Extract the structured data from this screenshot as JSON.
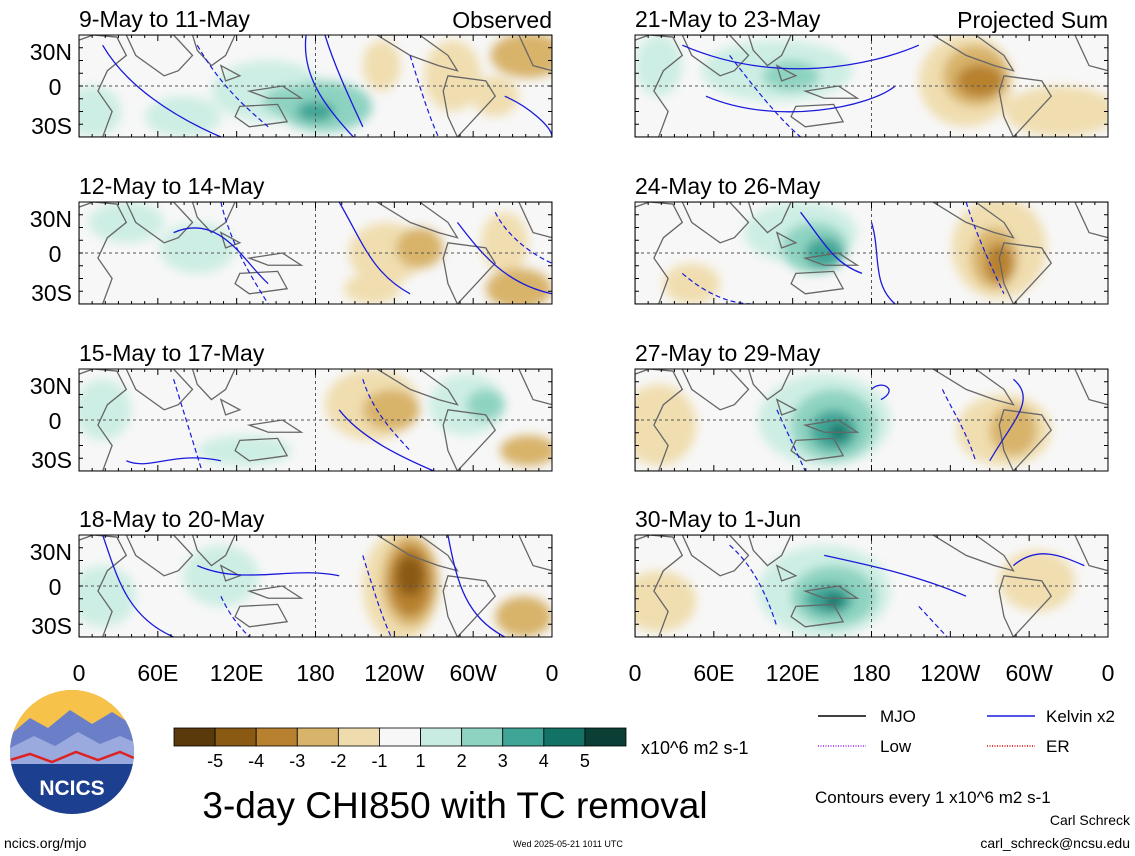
{
  "panels": [
    {
      "title": "9-May to 11-May",
      "label": "Observed"
    },
    {
      "title": "21-May to 23-May",
      "label": "Projected Sum"
    },
    {
      "title": "12-May to 14-May",
      "label": ""
    },
    {
      "title": "24-May to 26-May",
      "label": ""
    },
    {
      "title": "15-May to 17-May",
      "label": ""
    },
    {
      "title": "27-May to 29-May",
      "label": ""
    },
    {
      "title": "18-May to 20-May",
      "label": ""
    },
    {
      "title": "30-May to 1-Jun",
      "label": ""
    }
  ],
  "lat_labels": [
    "30N",
    "0",
    "30S"
  ],
  "lon_labels": [
    "0",
    "60E",
    "120E",
    "180",
    "120W",
    "60W",
    "0"
  ],
  "colorbar": {
    "ticks": [
      "-5",
      "-4",
      "-3",
      "-2",
      "-1",
      "1",
      "2",
      "3",
      "4",
      "5"
    ],
    "units": "x10^6 m2 s-1",
    "colors": [
      "#5a3a0a",
      "#8a5a12",
      "#b7812f",
      "#d8b36b",
      "#efdcae",
      "#f7f7f7",
      "#c9ece2",
      "#8ed3c1",
      "#3fa596",
      "#137266",
      "#0b3f36"
    ]
  },
  "legend": {
    "mjo": {
      "label": "MJO",
      "color": "#000000"
    },
    "kelvin": {
      "label": "Kelvin x2",
      "color": "#1a1adc"
    },
    "low": {
      "label": "Low",
      "color": "#a020f0"
    },
    "er": {
      "label": "ER",
      "color": "#e00000"
    },
    "contours": "Contours every 1 x10^6 m2 s-1"
  },
  "main_title": "3-day CHI850 with TC removal",
  "logo_text": "NCICS",
  "footer": {
    "site": "ncics.org/mjo",
    "timestamp": "Wed 2025-05-21 1011 UTC",
    "author": "Carl Schreck",
    "email": "carl_schreck@ncsu.edu"
  }
}
